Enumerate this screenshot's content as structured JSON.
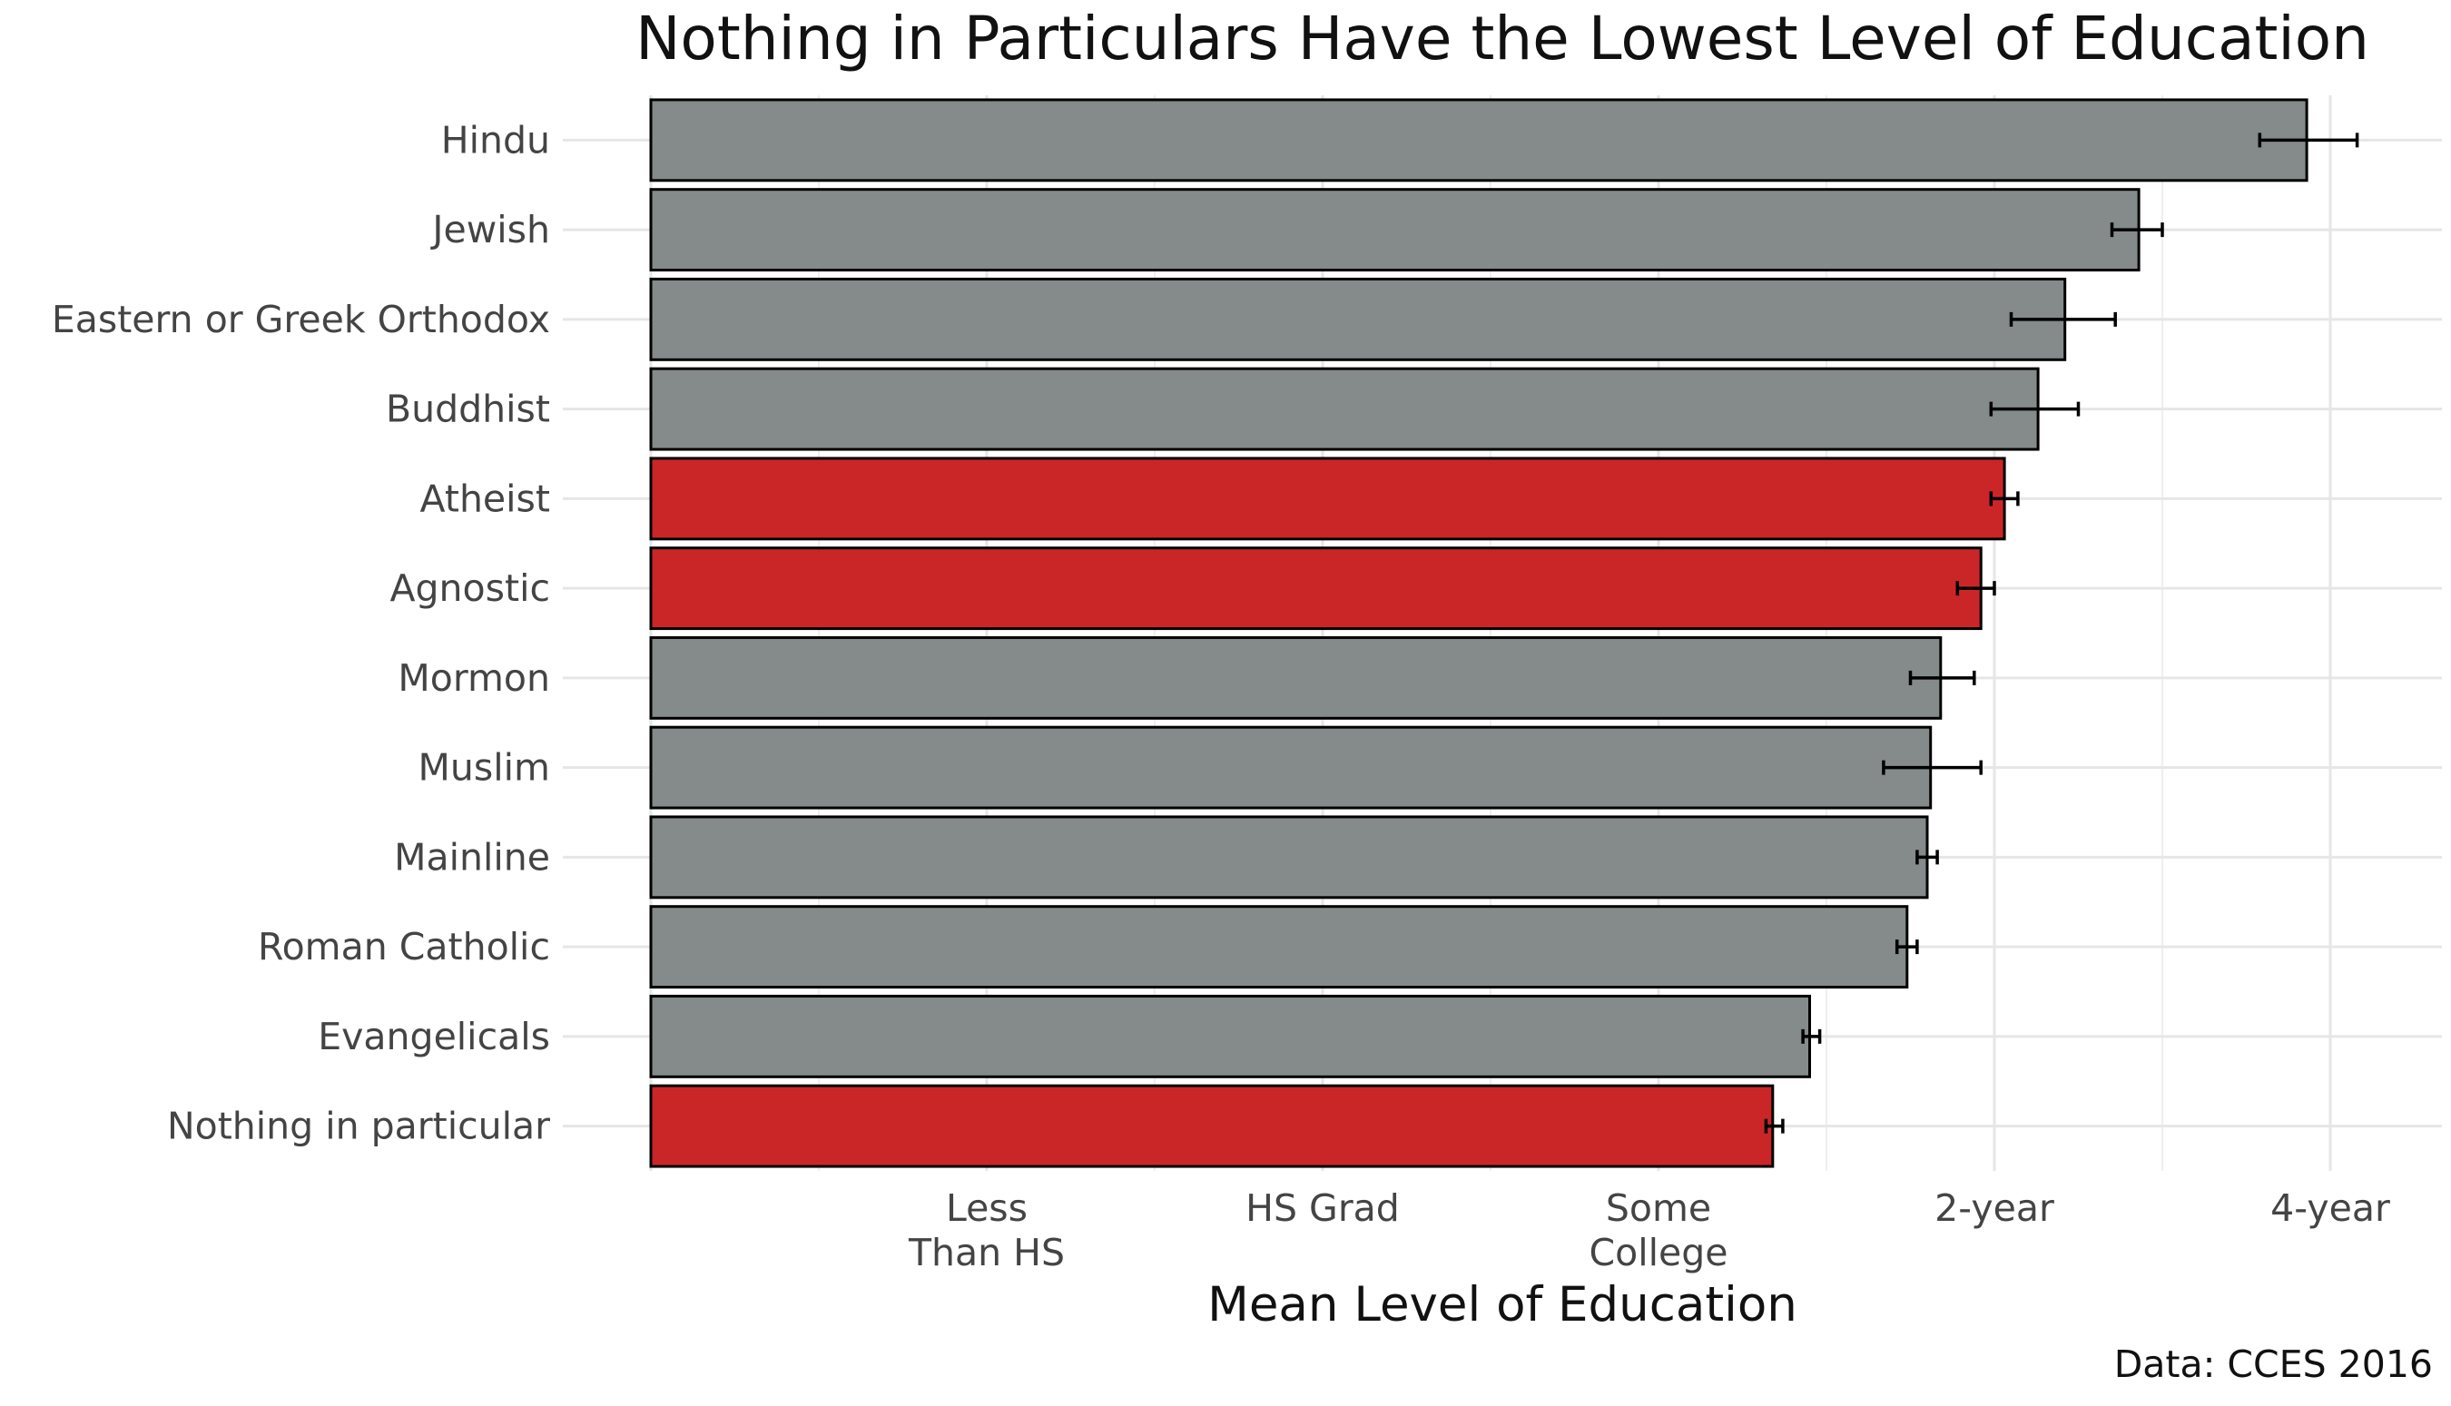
{
  "chart_data": {
    "type": "bar",
    "orientation": "horizontal",
    "title": "Nothing in Particulars Have the Lowest Level of Education",
    "xlabel": "Mean Level of Education",
    "ylabel": "",
    "caption": "Data: CCES 2016",
    "xlim": [
      0,
      5.2
    ],
    "grid": true,
    "x_ticks": [
      {
        "value": 1,
        "lines": [
          "Less",
          "Than HS"
        ]
      },
      {
        "value": 2,
        "lines": [
          "HS Grad"
        ]
      },
      {
        "value": 3,
        "lines": [
          "Some",
          "College"
        ]
      },
      {
        "value": 4,
        "lines": [
          "2-year"
        ]
      },
      {
        "value": 5,
        "lines": [
          "4-year"
        ]
      }
    ],
    "categories": [
      "Hindu",
      "Jewish",
      "Eastern or Greek Orthodox",
      "Buddhist",
      "Atheist",
      "Agnostic",
      "Mormon",
      "Muslim",
      "Mainline",
      "Roman Catholic",
      "Evangelicals",
      "Nothing in particular"
    ],
    "values": [
      4.93,
      4.43,
      4.21,
      4.13,
      4.03,
      3.96,
      3.84,
      3.81,
      3.8,
      3.74,
      3.45,
      3.34
    ],
    "error_low": [
      4.79,
      4.35,
      4.05,
      3.99,
      3.99,
      3.89,
      3.75,
      3.67,
      3.77,
      3.71,
      3.43,
      3.32
    ],
    "error_high": [
      5.08,
      4.5,
      4.36,
      4.25,
      4.07,
      4.0,
      3.94,
      3.96,
      3.83,
      3.77,
      3.48,
      3.37
    ],
    "highlighted": [
      "Atheist",
      "Agnostic",
      "Nothing in particular"
    ],
    "colors": {
      "default": "#848b8a",
      "highlight": "#cb2627"
    }
  }
}
